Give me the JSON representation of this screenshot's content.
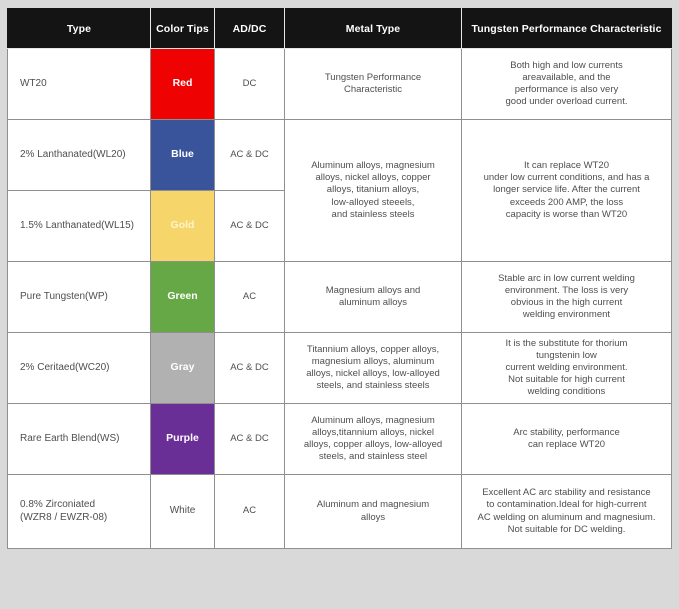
{
  "page": {
    "background": "#d9d9d9",
    "table_background": "#ffffff",
    "header_background": "#141414",
    "header_text_color": "#ffffff",
    "body_text_color": "#4f4f4f",
    "border_color": "#8f8f8f"
  },
  "table": {
    "headers": {
      "type": "Type",
      "color_tips": "Color Tips",
      "acdc": "AD/DC",
      "metal_type": "Metal Type",
      "characteristic": "Tungsten Performance Characteristic"
    },
    "rows": [
      {
        "type": "WT20",
        "color_label": "Red",
        "color_hex": "#ee0202",
        "label_color": "#ffffff",
        "current": "DC",
        "metal": "Tungsten Performance\nCharacteristic",
        "characteristic": "Both high and low currents\nareavailable, and the\nperformance is also very\ngood under overload current."
      },
      {
        "type": "2% Lanthanated(WL20)",
        "color_label": "Blue",
        "color_hex": "#3a549c",
        "label_color": "#ffffff",
        "current": "AC & DC",
        "metal": "Aluminum alloys, magnesium\nalloys, nickel alloys, copper\nalloys, titanium alloys,\nlow-alloyed steeels,\nand stainless steels",
        "characteristic": "It can replace WT20\nunder low current conditions, and has a\nlonger service life. After the current\nexceeds 200 AMP, the loss\ncapacity is worse than WT20"
      },
      {
        "type": "1.5% Lanthanated(WL15)",
        "color_label": "Gold",
        "color_hex": "#f6d66b",
        "label_color": "#fdf3cd",
        "current": "AC & DC"
      },
      {
        "type": "Pure Tungsten(WP)",
        "color_label": "Green",
        "color_hex": "#66a846",
        "label_color": "#ffffff",
        "current": "AC",
        "metal": "Magnesium alloys and\naluminum alloys",
        "characteristic": "Stable arc in low current welding\nenvironment. The loss is very\nobvious in the high current\nwelding environment"
      },
      {
        "type": "2% Ceritaed(WC20)",
        "color_label": "Gray",
        "color_hex": "#b1b1b1",
        "label_color": "#ffffff",
        "current": "AC & DC",
        "metal": "Titannium alloys, copper alloys,\nmagnesium alloys, aluminum\nalloys, nickel alloys, low-alloyed\nsteels, and stainless steels",
        "characteristic": "It is the substitute for thorium\ntungstenin low\ncurrent welding environment.\nNot suitable for high current\nwelding conditions"
      },
      {
        "type": "Rare Earth Blend(WS)",
        "color_label": "Purple",
        "color_hex": "#6a2e97",
        "label_color": "#ffffff",
        "current": "AC & DC",
        "metal": "Aluminum alloys, magnesium\nalloys,titannium alloys, nickel\nalloys, copper alloys, low-alloyed\nsteels, and stainless steel",
        "characteristic": "Arc stability, performance\ncan replace WT20"
      },
      {
        "type": "0.8% Zirconiated\n(WZR8 / EWZR-08)",
        "color_label": "White",
        "color_hex": "#ffffff",
        "label_color": "#4f4f4f",
        "current": "AC",
        "metal": "Aluminum and magnesium\nalloys",
        "characteristic": "Excellent AC arc stability and resistance\nto contamination.Ideal for high-current\nAC welding on aluminum and magnesium.\nNot suitable for DC welding."
      }
    ]
  },
  "chart_data": {
    "type": "table",
    "title": "Tungsten electrode comparison table",
    "columns": [
      "Type",
      "Color Tips",
      "AD/DC",
      "Metal Type",
      "Tungsten Performance Characteristic"
    ],
    "rows": [
      [
        "WT20",
        "Red",
        "DC",
        "Tungsten Performance Characteristic",
        "Both high and low currents areavailable, and the performance is also very good under overload current."
      ],
      [
        "2% Lanthanated(WL20)",
        "Blue",
        "AC & DC",
        "Aluminum alloys, magnesium alloys, nickel alloys, copper alloys, titanium alloys, low-alloyed steeels, and stainless steels",
        "It can replace WT20 under low current conditions, and has a longer service life. After the current exceeds 200 AMP, the loss capacity is worse than WT20"
      ],
      [
        "1.5% Lanthanated(WL15)",
        "Gold",
        "AC & DC",
        "(merged with row above)",
        "(merged with row above)"
      ],
      [
        "Pure Tungsten(WP)",
        "Green",
        "AC",
        "Magnesium alloys and aluminum alloys",
        "Stable arc in low current welding environment. The loss is very obvious in the high current welding environment"
      ],
      [
        "2% Ceritaed(WC20)",
        "Gray",
        "AC & DC",
        "Titannium alloys, copper alloys, magnesium alloys, aluminum alloys, nickel alloys, low-alloyed steels, and stainless steels",
        "It is the substitute for thorium tungstenin low current welding environment. Not suitable for high current welding conditions"
      ],
      [
        "Rare Earth Blend(WS)",
        "Purple",
        "AC & DC",
        "Aluminum alloys, magnesium alloys,titannium alloys, nickel alloys, copper alloys, low-alloyed steels, and stainless steel",
        "Arc stability, performance can replace WT20"
      ],
      [
        "0.8% Zirconiated (WZR8 / EWZR-08)",
        "White",
        "AC",
        "Aluminum and magnesium alloys",
        "Excellent AC arc stability and resistance to contamination.Ideal for high-current AC welding on aluminum and magnesium. Not suitable for DC welding."
      ]
    ],
    "merged_cells": [
      {
        "columns": [
          "Metal Type",
          "Tungsten Performance Characteristic"
        ],
        "rows": [
          "2% Lanthanated(WL20)",
          "1.5% Lanthanated(WL15)"
        ]
      }
    ],
    "color_swatches": {
      "Red": "#ee0202",
      "Blue": "#3a549c",
      "Gold": "#f6d66b",
      "Green": "#66a846",
      "Gray": "#b1b1b1",
      "Purple": "#6a2e97",
      "White": "#ffffff"
    }
  }
}
